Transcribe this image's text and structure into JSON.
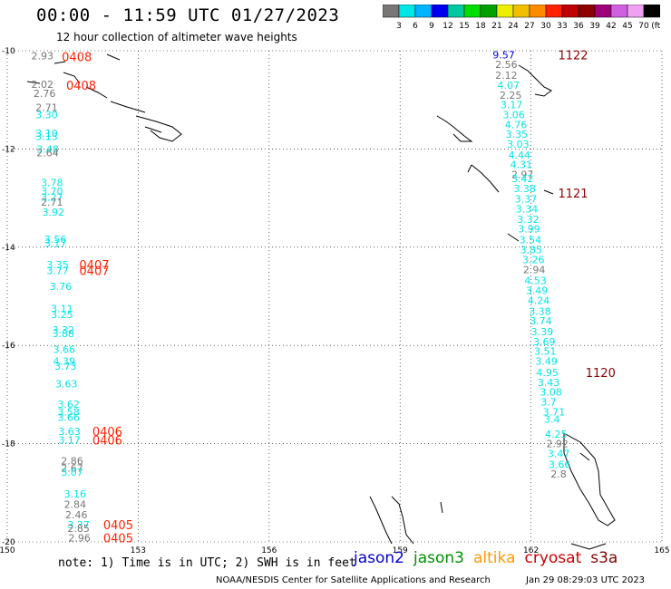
{
  "header": {
    "title": "00:00 - 11:59 UTC 01/27/2023",
    "subtitle": "12 hour collection of altimeter wave heights",
    "colorbar_labels": [
      "3",
      "6",
      "9",
      "12",
      "15",
      "18",
      "21",
      "24",
      "27",
      "30",
      "33",
      "36",
      "39",
      "42",
      "45",
      "70",
      "(ft)"
    ],
    "colorbar_colors": [
      "#777777",
      "#00e6e6",
      "#00b4ff",
      "#0000ee",
      "#00c8a0",
      "#00dd00",
      "#00a000",
      "#eeee00",
      "#f0c000",
      "#ff8c00",
      "#ff2000",
      "#c00000",
      "#8b0000",
      "#a0007a",
      "#d060e0",
      "#f0a0f0",
      "#000000"
    ]
  },
  "footer": {
    "note": "note: 1) Time is in UTC; 2) SWH is in feet",
    "legend": [
      {
        "label": "jason2",
        "color": "#0000cc"
      },
      {
        "label": "jason3",
        "color": "#009000"
      },
      {
        "label": "altika",
        "color": "#ff9900"
      },
      {
        "label": "cryosat",
        "color": "#cc0000"
      },
      {
        "label": "s3a",
        "color": "#880000"
      }
    ],
    "credit": "NOAA/NESDIS Center for Satellite Applications and Research",
    "date": "Jan 29 08:29:03 UTC 2023"
  },
  "chart_data": {
    "type": "scatter",
    "xlim": [
      150,
      165
    ],
    "ylim": [
      -20,
      -10
    ],
    "x_ticks": [
      "150",
      "153",
      "156",
      "159",
      "162",
      "165"
    ],
    "y_ticks": [
      "-10",
      "-12",
      "-14",
      "-16",
      "-18",
      "-20"
    ],
    "grid": true,
    "track_times": [
      {
        "label": "0408",
        "x": 151.25,
        "y": -10.12,
        "color": "#ff2000"
      },
      {
        "label": "0408",
        "x": 151.35,
        "y": -10.7,
        "color": "#ff2000"
      },
      {
        "label": "0407",
        "x": 151.65,
        "y": -14.35,
        "color": "#ff2000"
      },
      {
        "label": "0407",
        "x": 151.65,
        "y": -14.47,
        "color": "#ff2000"
      },
      {
        "label": "0406",
        "x": 151.95,
        "y": -17.75,
        "color": "#ff2000"
      },
      {
        "label": "0406",
        "x": 151.95,
        "y": -17.92,
        "color": "#ff2000"
      },
      {
        "label": "0405",
        "x": 152.2,
        "y": -19.65,
        "color": "#ff2000"
      },
      {
        "label": "0405",
        "x": 152.2,
        "y": -19.92,
        "color": "#ff2000"
      },
      {
        "label": "1122",
        "x": 162.62,
        "y": -10.08,
        "color": "#8b0000"
      },
      {
        "label": "1121",
        "x": 162.62,
        "y": -12.9,
        "color": "#8b0000"
      },
      {
        "label": "1120",
        "x": 163.25,
        "y": -16.55,
        "color": "#8b0000"
      }
    ],
    "points": [
      {
        "v": "2.93",
        "x": 150.55,
        "y": -10.1,
        "c": "#777777"
      },
      {
        "v": "2.02",
        "x": 150.55,
        "y": -10.68,
        "c": "#777777"
      },
      {
        "v": "2.76",
        "x": 150.6,
        "y": -10.87,
        "c": "#777777"
      },
      {
        "v": "2.71",
        "x": 150.65,
        "y": -11.15,
        "c": "#777777"
      },
      {
        "v": "3.30",
        "x": 150.65,
        "y": -11.3,
        "c": "#00e6e6"
      },
      {
        "v": "3.10",
        "x": 150.65,
        "y": -11.68,
        "c": "#00e6e6"
      },
      {
        "v": "3.13",
        "x": 150.65,
        "y": -11.74,
        "c": "#00e6e6"
      },
      {
        "v": "3.48",
        "x": 150.67,
        "y": -12.0,
        "c": "#00e6e6"
      },
      {
        "v": "2.64",
        "x": 150.67,
        "y": -12.08,
        "c": "#777777"
      },
      {
        "v": "3.78",
        "x": 150.77,
        "y": -12.68,
        "c": "#00e6e6"
      },
      {
        "v": "3.70",
        "x": 150.77,
        "y": -12.86,
        "c": "#00e6e6"
      },
      {
        "v": "3.27",
        "x": 150.77,
        "y": -12.98,
        "c": "#00e6e6"
      },
      {
        "v": "2.71",
        "x": 150.77,
        "y": -13.08,
        "c": "#777777"
      },
      {
        "v": "3.92",
        "x": 150.8,
        "y": -13.28,
        "c": "#00e6e6"
      },
      {
        "v": "3.56",
        "x": 150.85,
        "y": -13.84,
        "c": "#00e6e6"
      },
      {
        "v": "3.17",
        "x": 150.85,
        "y": -13.92,
        "c": "#00e6e6"
      },
      {
        "v": "3.35",
        "x": 150.9,
        "y": -14.35,
        "c": "#00e6e6"
      },
      {
        "v": "3.77",
        "x": 150.9,
        "y": -14.47,
        "c": "#00e6e6"
      },
      {
        "v": "3.76",
        "x": 150.97,
        "y": -14.8,
        "c": "#00e6e6"
      },
      {
        "v": "3.11",
        "x": 151.0,
        "y": -15.25,
        "c": "#00e6e6"
      },
      {
        "v": "3.25",
        "x": 151.0,
        "y": -15.37,
        "c": "#00e6e6"
      },
      {
        "v": "3.32",
        "x": 151.03,
        "y": -15.68,
        "c": "#00e6e6"
      },
      {
        "v": "3.88",
        "x": 151.03,
        "y": -15.76,
        "c": "#00e6e6"
      },
      {
        "v": "3.66",
        "x": 151.05,
        "y": -16.08,
        "c": "#00e6e6"
      },
      {
        "v": "4.39",
        "x": 151.05,
        "y": -16.32,
        "c": "#00e6e6"
      },
      {
        "v": "3.73",
        "x": 151.08,
        "y": -16.42,
        "c": "#00e6e6"
      },
      {
        "v": "3.63",
        "x": 151.1,
        "y": -16.78,
        "c": "#00e6e6"
      },
      {
        "v": "3.62",
        "x": 151.15,
        "y": -17.2,
        "c": "#00e6e6"
      },
      {
        "v": "3.58",
        "x": 151.15,
        "y": -17.35,
        "c": "#00e6e6"
      },
      {
        "v": "3.66",
        "x": 151.15,
        "y": -17.46,
        "c": "#00e6e6"
      },
      {
        "v": "3.63",
        "x": 151.17,
        "y": -17.75,
        "c": "#00e6e6"
      },
      {
        "v": "3.17",
        "x": 151.17,
        "y": -17.92,
        "c": "#00e6e6"
      },
      {
        "v": "2.86",
        "x": 151.23,
        "y": -18.35,
        "c": "#777777"
      },
      {
        "v": "2.67",
        "x": 151.23,
        "y": -18.5,
        "c": "#777777"
      },
      {
        "v": "3.07",
        "x": 151.23,
        "y": -18.58,
        "c": "#00e6e6"
      },
      {
        "v": "3.16",
        "x": 151.3,
        "y": -19.02,
        "c": "#00e6e6"
      },
      {
        "v": "2.84",
        "x": 151.3,
        "y": -19.23,
        "c": "#777777"
      },
      {
        "v": "2.46",
        "x": 151.33,
        "y": -19.45,
        "c": "#777777"
      },
      {
        "v": "3.37",
        "x": 151.38,
        "y": -19.65,
        "c": "#00e6e6"
      },
      {
        "v": "2.85",
        "x": 151.38,
        "y": -19.72,
        "c": "#777777"
      },
      {
        "v": "2.96",
        "x": 151.4,
        "y": -19.92,
        "c": "#777777"
      },
      {
        "v": "9.57",
        "x": 161.12,
        "y": -10.08,
        "c": "#0000ee"
      },
      {
        "v": "2.56",
        "x": 161.18,
        "y": -10.28,
        "c": "#777777"
      },
      {
        "v": "2.12",
        "x": 161.18,
        "y": -10.5,
        "c": "#777777"
      },
      {
        "v": "4.07",
        "x": 161.23,
        "y": -10.7,
        "c": "#00e6e6"
      },
      {
        "v": "2.25",
        "x": 161.28,
        "y": -10.9,
        "c": "#777777"
      },
      {
        "v": "3.17",
        "x": 161.3,
        "y": -11.1,
        "c": "#00e6e6"
      },
      {
        "v": "3.06",
        "x": 161.35,
        "y": -11.3,
        "c": "#00e6e6"
      },
      {
        "v": "4.76",
        "x": 161.4,
        "y": -11.5,
        "c": "#00e6e6"
      },
      {
        "v": "3.35",
        "x": 161.42,
        "y": -11.7,
        "c": "#00e6e6"
      },
      {
        "v": "3.03",
        "x": 161.45,
        "y": -11.9,
        "c": "#00e6e6"
      },
      {
        "v": "4.44",
        "x": 161.48,
        "y": -12.12,
        "c": "#00e6e6"
      },
      {
        "v": "4.31",
        "x": 161.52,
        "y": -12.32,
        "c": "#00e6e6"
      },
      {
        "v": "2.97",
        "x": 161.55,
        "y": -12.52,
        "c": "#777777"
      },
      {
        "v": "3.42",
        "x": 161.55,
        "y": -12.6,
        "c": "#00e6e6"
      },
      {
        "v": "3.38",
        "x": 161.6,
        "y": -12.8,
        "c": "#00e6e6"
      },
      {
        "v": "3.37",
        "x": 161.63,
        "y": -13.02,
        "c": "#00e6e6"
      },
      {
        "v": "3.34",
        "x": 161.65,
        "y": -13.22,
        "c": "#00e6e6"
      },
      {
        "v": "3.32",
        "x": 161.68,
        "y": -13.43,
        "c": "#00e6e6"
      },
      {
        "v": "3.99",
        "x": 161.7,
        "y": -13.63,
        "c": "#00e6e6"
      },
      {
        "v": "3.54",
        "x": 161.73,
        "y": -13.85,
        "c": "#00e6e6"
      },
      {
        "v": "3.85",
        "x": 161.75,
        "y": -14.05,
        "c": "#00e6e6"
      },
      {
        "v": "3.26",
        "x": 161.8,
        "y": -14.25,
        "c": "#00e6e6"
      },
      {
        "v": "2.94",
        "x": 161.82,
        "y": -14.46,
        "c": "#777777"
      },
      {
        "v": "4.53",
        "x": 161.85,
        "y": -14.68,
        "c": "#00e6e6"
      },
      {
        "v": "3.49",
        "x": 161.88,
        "y": -14.88,
        "c": "#00e6e6"
      },
      {
        "v": "4.24",
        "x": 161.92,
        "y": -15.08,
        "c": "#00e6e6"
      },
      {
        "v": "3.38",
        "x": 161.95,
        "y": -15.3,
        "c": "#00e6e6"
      },
      {
        "v": "3.74",
        "x": 161.97,
        "y": -15.5,
        "c": "#00e6e6"
      },
      {
        "v": "3.39",
        "x": 162.0,
        "y": -15.72,
        "c": "#00e6e6"
      },
      {
        "v": "3.69",
        "x": 162.05,
        "y": -15.92,
        "c": "#00e6e6"
      },
      {
        "v": "3.51",
        "x": 162.07,
        "y": -16.12,
        "c": "#00e6e6"
      },
      {
        "v": "3.49",
        "x": 162.1,
        "y": -16.32,
        "c": "#00e6e6"
      },
      {
        "v": "4.95",
        "x": 162.12,
        "y": -16.55,
        "c": "#00e6e6"
      },
      {
        "v": "3.43",
        "x": 162.15,
        "y": -16.75,
        "c": "#00e6e6"
      },
      {
        "v": "3.08",
        "x": 162.2,
        "y": -16.95,
        "c": "#00e6e6"
      },
      {
        "v": "3.7",
        "x": 162.22,
        "y": -17.15,
        "c": "#00e6e6"
      },
      {
        "v": "3.71",
        "x": 162.27,
        "y": -17.35,
        "c": "#00e6e6"
      },
      {
        "v": "3.4",
        "x": 162.3,
        "y": -17.5,
        "c": "#00e6e6"
      },
      {
        "v": "4.25",
        "x": 162.32,
        "y": -17.8,
        "c": "#00e6e6"
      },
      {
        "v": "2.92",
        "x": 162.35,
        "y": -18.0,
        "c": "#777777"
      },
      {
        "v": "3.47",
        "x": 162.38,
        "y": -18.2,
        "c": "#00e6e6"
      },
      {
        "v": "3.66",
        "x": 162.4,
        "y": -18.42,
        "c": "#00e6e6"
      },
      {
        "v": "2.8",
        "x": 162.45,
        "y": -18.62,
        "c": "#777777"
      }
    ]
  }
}
